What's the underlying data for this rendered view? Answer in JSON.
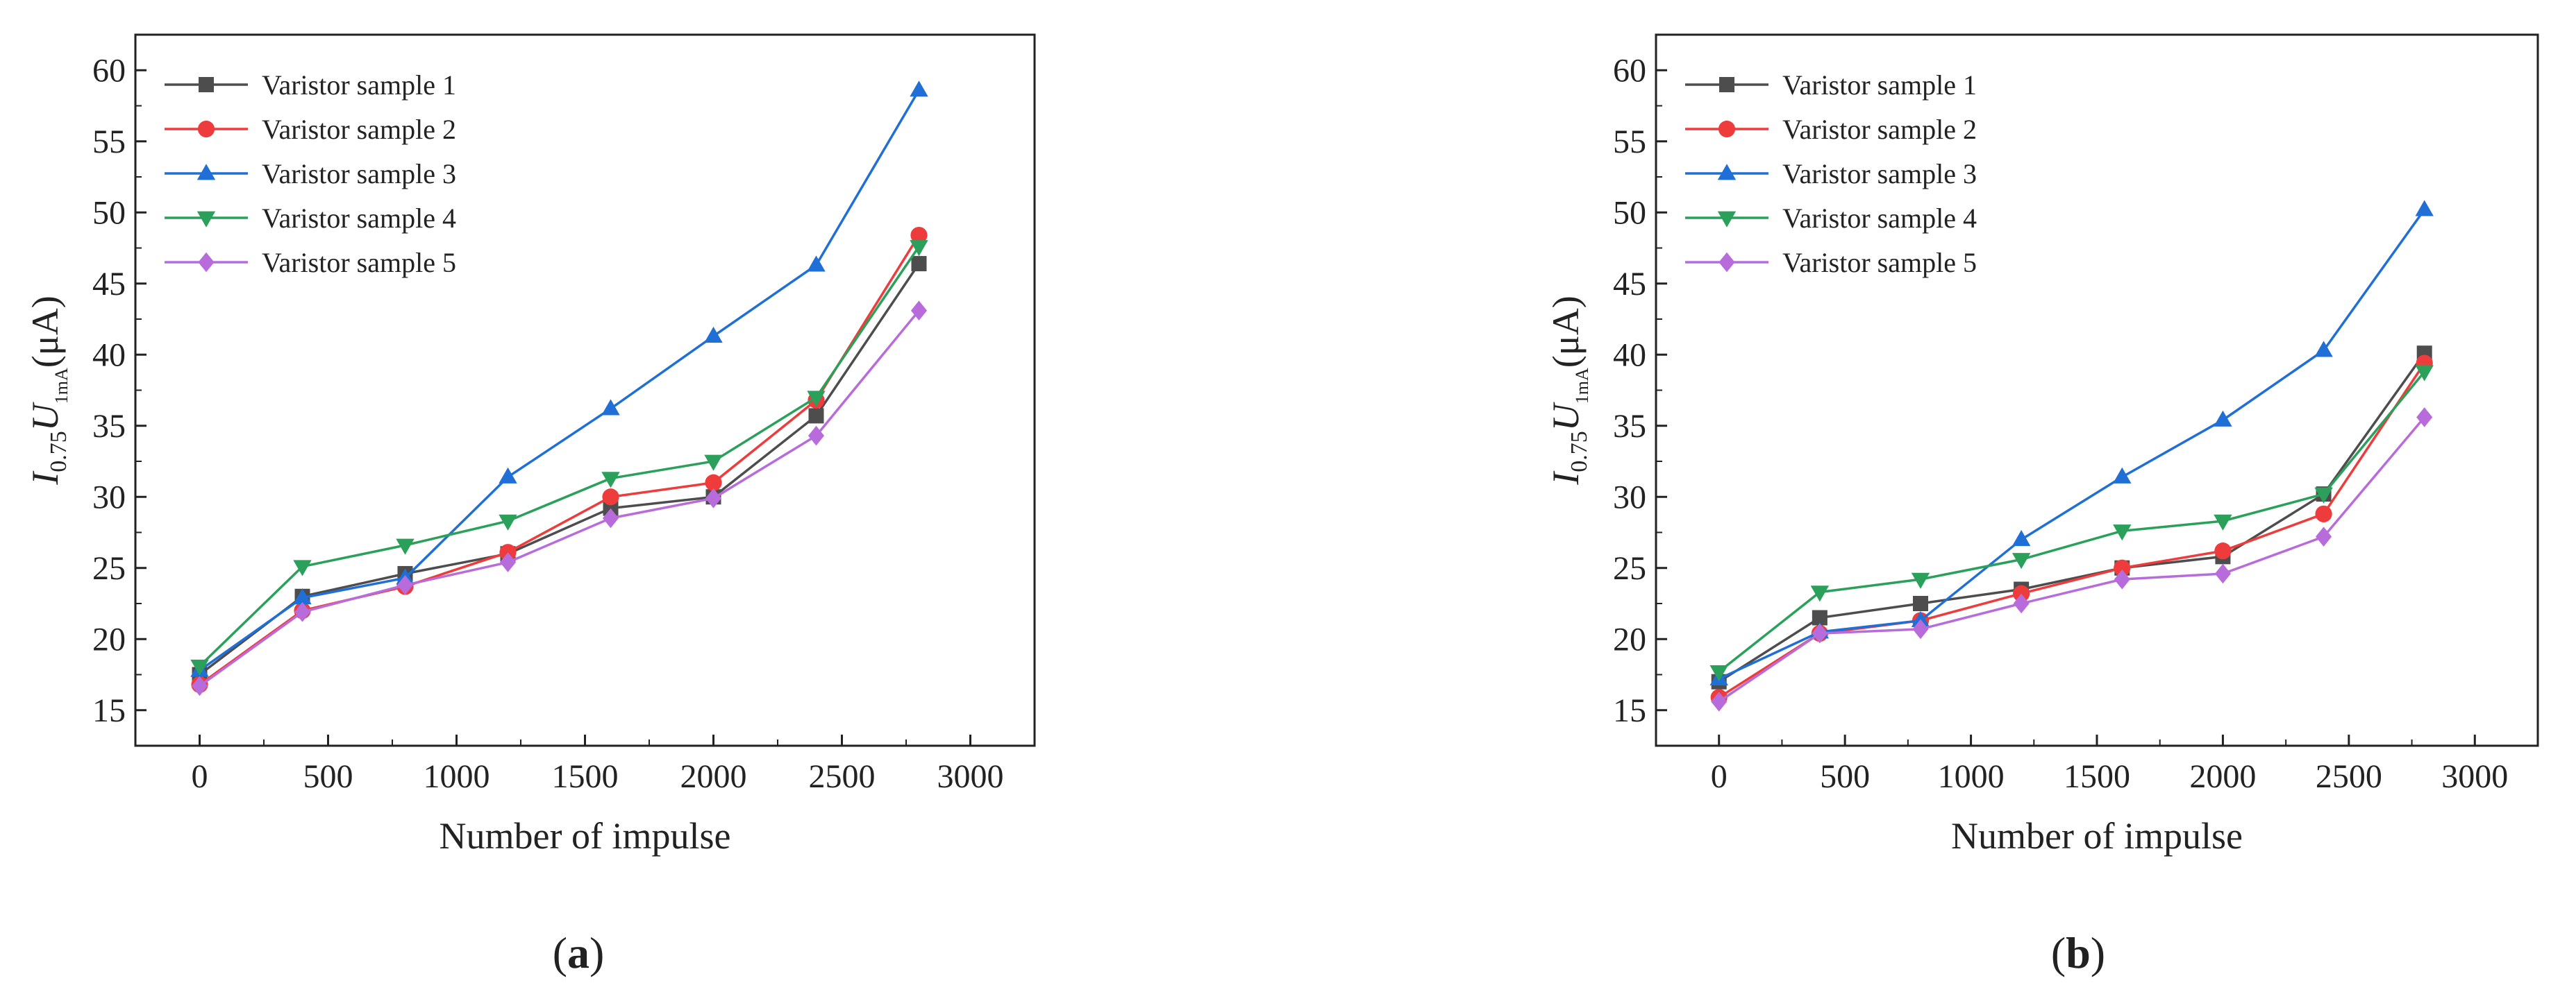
{
  "figure": {
    "panels": [
      {
        "label_open": "(",
        "label_letter": "a",
        "label_close": ")"
      },
      {
        "label_open": "(",
        "label_letter": "b",
        "label_close": ")"
      }
    ]
  },
  "chart_data": [
    {
      "type": "line",
      "title": "",
      "xlabel": "Number of impulse",
      "ylabel": {
        "main": "I",
        "sub1": "0.75",
        "u": "U",
        "sub2": "1mA",
        "unit": "(μA)"
      },
      "xlim": [
        -250,
        3250
      ],
      "ylim": [
        12.5,
        62.5
      ],
      "xticks": [
        0,
        500,
        1000,
        1500,
        2000,
        2500,
        3000
      ],
      "yticks": [
        15,
        20,
        25,
        30,
        35,
        40,
        45,
        50,
        55,
        60
      ],
      "grid": false,
      "legend_position": "top-left",
      "x": [
        0,
        400,
        800,
        1200,
        1600,
        2000,
        2400,
        2800
      ],
      "series": [
        {
          "name": "Varistor sample 1",
          "color": "#4d4d4d",
          "marker": "square",
          "values": [
            17.5,
            23.0,
            24.6,
            26.0,
            29.2,
            30.0,
            35.7,
            46.4
          ]
        },
        {
          "name": "Varistor sample 2",
          "color": "#ee3b3b",
          "marker": "circle",
          "values": [
            16.8,
            22.0,
            23.7,
            26.1,
            30.0,
            31.0,
            36.8,
            48.4
          ]
        },
        {
          "name": "Varistor sample 3",
          "color": "#1f6fd6",
          "marker": "triangle-up",
          "values": [
            17.8,
            22.9,
            24.3,
            31.4,
            36.2,
            41.3,
            46.3,
            58.6
          ]
        },
        {
          "name": "Varistor sample 4",
          "color": "#2aa05a",
          "marker": "triangle-down",
          "values": [
            18.1,
            25.1,
            26.6,
            28.3,
            31.3,
            32.5,
            37.0,
            47.6
          ]
        },
        {
          "name": "Varistor sample 5",
          "color": "#b86cdb",
          "marker": "diamond",
          "values": [
            16.7,
            21.9,
            23.8,
            25.4,
            28.5,
            29.9,
            34.3,
            43.1
          ]
        }
      ]
    },
    {
      "type": "line",
      "title": "",
      "xlabel": "Number of impulse",
      "ylabel": {
        "main": "I",
        "sub1": "0.75",
        "u": "U",
        "sub2": "1mA",
        "unit": "(μA)"
      },
      "xlim": [
        -250,
        3250
      ],
      "ylim": [
        12.5,
        62.5
      ],
      "xticks": [
        0,
        500,
        1000,
        1500,
        2000,
        2500,
        3000
      ],
      "yticks": [
        15,
        20,
        25,
        30,
        35,
        40,
        45,
        50,
        55,
        60
      ],
      "grid": false,
      "legend_position": "top-left",
      "x": [
        0,
        400,
        800,
        1200,
        1600,
        2000,
        2400,
        2800
      ],
      "series": [
        {
          "name": "Varistor sample 1",
          "color": "#4d4d4d",
          "marker": "square",
          "values": [
            17.0,
            21.5,
            22.5,
            23.5,
            25.0,
            25.8,
            30.2,
            40.1
          ]
        },
        {
          "name": "Varistor sample 2",
          "color": "#ee3b3b",
          "marker": "circle",
          "values": [
            15.9,
            20.4,
            21.3,
            23.2,
            25.0,
            26.2,
            28.8,
            39.4
          ]
        },
        {
          "name": "Varistor sample 3",
          "color": "#1f6fd6",
          "marker": "triangle-up",
          "values": [
            17.2,
            20.5,
            21.3,
            27.0,
            31.4,
            35.4,
            40.3,
            50.2
          ]
        },
        {
          "name": "Varistor sample 4",
          "color": "#2aa05a",
          "marker": "triangle-down",
          "values": [
            17.7,
            23.3,
            24.2,
            25.6,
            27.6,
            28.3,
            30.2,
            38.8
          ]
        },
        {
          "name": "Varistor sample 5",
          "color": "#b86cdb",
          "marker": "diamond",
          "values": [
            15.6,
            20.4,
            20.7,
            22.5,
            24.2,
            24.6,
            27.2,
            35.6
          ]
        }
      ]
    }
  ]
}
